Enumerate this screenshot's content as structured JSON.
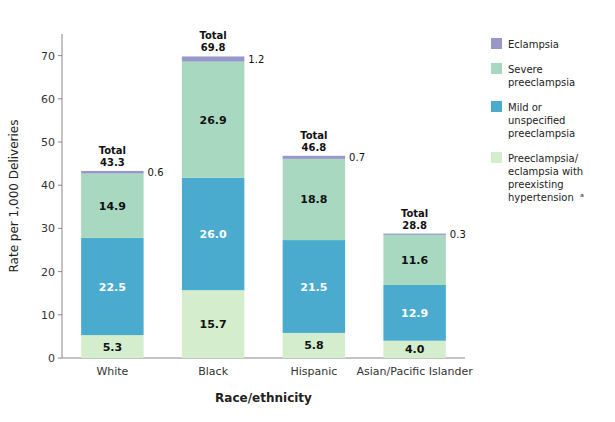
{
  "chart_data": {
    "type": "bar",
    "stacked": true,
    "data_labels": true,
    "grid": false,
    "legend": "right",
    "categories": [
      "White",
      "Black",
      "Hispanic",
      "Asian/Pacific Islander"
    ],
    "series": [
      {
        "name": "Preeclampsia/\neclampsia with\npreexisting\nhypertension  ᵃ",
        "color": "#d4edcc",
        "values": [
          5.3,
          15.7,
          5.8,
          4.0
        ],
        "value_labels": [
          "5.3",
          "15.7",
          "5.8",
          "4.0"
        ]
      },
      {
        "name": "Mild or\nunspecified\npreeclampsia",
        "color": "#4aabcf",
        "values": [
          22.5,
          26.0,
          21.5,
          12.9
        ],
        "value_labels": [
          "22.5",
          "26.0",
          "21.5",
          "12.9"
        ]
      },
      {
        "name": "Severe\npreeclampsia",
        "color": "#a8d9c0",
        "values": [
          14.9,
          26.9,
          18.8,
          11.6
        ]
      },
      {
        "name": "Eclampsia",
        "color": "#9898c8",
        "values": [
          0.6,
          1.2,
          0.7,
          0.3
        ]
      }
    ],
    "totals": [
      43.3,
      69.8,
      46.8,
      28.8
    ],
    "totals_label": "Total",
    "xlabel": "Race/ethnicity",
    "ylabel": "Rate per 1,000 Deliveries",
    "ylim": [
      0,
      75
    ],
    "yticks": [
      0,
      10,
      20,
      30,
      40,
      50,
      60,
      70
    ]
  }
}
